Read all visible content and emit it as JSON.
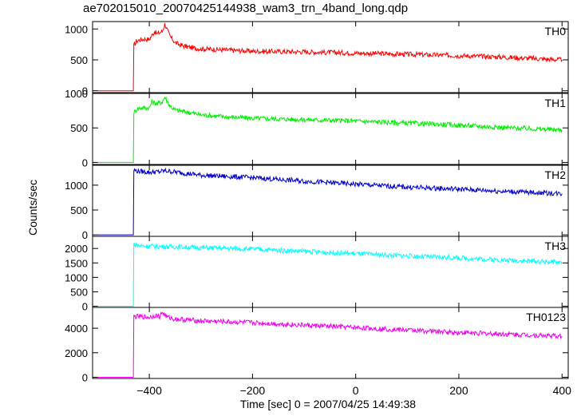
{
  "title": "ae702015010_20070425144938_wam3_trn_4band_long.qdp",
  "ylabel": "Counts/sec",
  "xlabel": "Time [sec] 0 = 2007/04/25 14:49:38",
  "chart_data": {
    "type": "line",
    "title": "ae702015010_20070425144938_wam3_trn_4band_long.qdp",
    "xlabel": "Time [sec] 0 = 2007/04/25 14:49:38",
    "ylabel": "Counts/sec",
    "xlim": [
      -510,
      412
    ],
    "x_ticks": [
      -400,
      -200,
      0,
      200,
      400
    ],
    "grid": false,
    "legend": "none",
    "panels": [
      {
        "name": "TH0",
        "color": "#ff0000",
        "ylim": [
          -30,
          1120
        ],
        "y_ticks": [
          0,
          500,
          1000
        ],
        "x": [
          -500,
          -431,
          -430,
          -425,
          -420,
          -410,
          -400,
          -390,
          -385,
          -375,
          -370,
          -360,
          -350,
          -340,
          -320,
          -300,
          -250,
          -200,
          -100,
          0,
          100,
          200,
          300,
          400
        ],
        "y": [
          0,
          0,
          730,
          800,
          820,
          840,
          830,
          960,
          920,
          960,
          1080,
          880,
          780,
          740,
          700,
          680,
          660,
          640,
          630,
          610,
          590,
          570,
          540,
          500
        ]
      },
      {
        "name": "TH1",
        "color": "#00ee00",
        "ylim": [
          -30,
          1000
        ],
        "y_ticks": [
          0,
          500,
          1000
        ],
        "x": [
          -500,
          -431,
          -430,
          -425,
          -420,
          -400,
          -395,
          -385,
          -375,
          -370,
          -360,
          -350,
          -320,
          -300,
          -250,
          -200,
          -100,
          0,
          100,
          200,
          300,
          400
        ],
        "y": [
          0,
          0,
          720,
          770,
          790,
          790,
          880,
          850,
          880,
          950,
          820,
          760,
          720,
          690,
          660,
          640,
          620,
          600,
          570,
          540,
          500,
          470
        ]
      },
      {
        "name": "TH2",
        "color": "#0000cc",
        "ylim": [
          -30,
          1400
        ],
        "y_ticks": [
          0,
          500,
          1000
        ],
        "x": [
          -500,
          -431,
          -430,
          -420,
          -400,
          -380,
          -370,
          -300,
          -200,
          -100,
          0,
          100,
          200,
          300,
          400
        ],
        "y": [
          0,
          0,
          1300,
          1280,
          1260,
          1270,
          1290,
          1200,
          1150,
          1080,
          1020,
          960,
          920,
          870,
          830
        ]
      },
      {
        "name": "TH3",
        "color": "#00ffff",
        "ylim": [
          -40,
          2420
        ],
        "y_ticks": [
          0,
          500,
          1000,
          1500,
          2000
        ],
        "x": [
          -500,
          -431,
          -430,
          -420,
          -400,
          -300,
          -200,
          -100,
          0,
          100,
          200,
          300,
          400
        ],
        "y": [
          0,
          0,
          2150,
          2100,
          2080,
          2030,
          1980,
          1900,
          1820,
          1740,
          1670,
          1590,
          1520
        ]
      },
      {
        "name": "TH0123",
        "color": "#ee00ee",
        "ylim": [
          -100,
          5700
        ],
        "y_ticks": [
          0,
          2000,
          4000
        ],
        "x": [
          -500,
          -431,
          -430,
          -420,
          -400,
          -390,
          -380,
          -375,
          -365,
          -350,
          -300,
          -200,
          -100,
          0,
          100,
          200,
          300,
          400
        ],
        "y": [
          0,
          0,
          4950,
          4950,
          4900,
          5050,
          4950,
          5300,
          4900,
          4750,
          4600,
          4450,
          4250,
          4050,
          3850,
          3650,
          3500,
          3350
        ]
      }
    ]
  }
}
